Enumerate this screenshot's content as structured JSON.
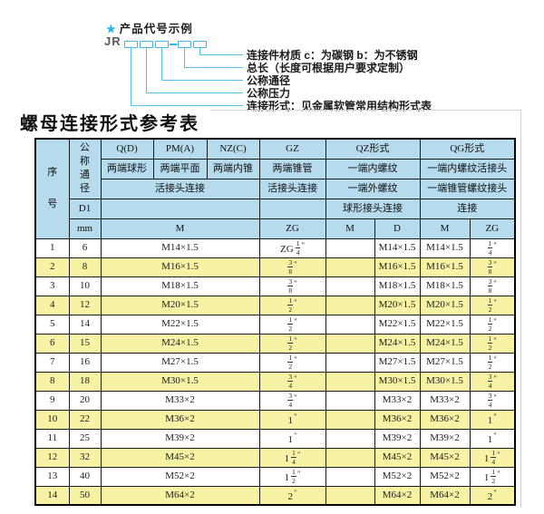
{
  "colors": {
    "accent_cyan": "#3cb6e3",
    "header_blue": "#b5dbed",
    "row_yellow": "#f8f2a4",
    "grid_black": "#1a1a1a"
  },
  "diagram": {
    "star": "★",
    "title": "产品代号示例",
    "prefix": "JR",
    "labels": [
      "连接件材质  c：为碳钢  b：为不锈钢",
      "总长（长度可根据用户要求定制）",
      "公称通径",
      "公称压力",
      "连接形式：见金属软管常用结构形式表"
    ]
  },
  "heading": "螺母连接形式参考表",
  "table": {
    "header": {
      "xuhao_1": "序",
      "xuhao_2": "号",
      "nominal_diameter": "公称通径",
      "col_q": "Q(D)",
      "col_pm": "PM(A)",
      "col_nz": "NZ(C)",
      "col_gz": "GZ",
      "col_qz": "QZ形式",
      "col_qg": "QG形式",
      "q_desc": "两端球形",
      "pm_desc": "两端平面",
      "nz_desc": "两端内锥",
      "gz_desc": "两端锥管",
      "qz_desc1": "一端内螺纹",
      "qg_desc1": "一端内螺纹活接头",
      "union_conn": "活接头连接",
      "gz_conn": "活接头连接",
      "qz_desc2": "一端外螺纹",
      "qg_desc2": "一端锥管螺纹接头",
      "d1": "D1",
      "qz_conn": "球形接头连接",
      "qg_conn": "连接",
      "mm": "mm",
      "m_main": "M",
      "zg_gz": "ZG",
      "m_qz": "M",
      "d_qz": "D",
      "m_qg": "M",
      "zg_qg": "ZG"
    },
    "rows": [
      {
        "no": "1",
        "dn": "6",
        "m": "M14×1.5",
        "gz": "ZG 1/4\"",
        "qz_m": "",
        "qz_d": "M14×1.5",
        "qg_m": "M14×1.5",
        "qg_zg": "1/4\""
      },
      {
        "no": "2",
        "dn": "8",
        "m": "M16×1.5",
        "gz": "3/8\"",
        "qz_m": "",
        "qz_d": "M16×1.5",
        "qg_m": "M16×1.5",
        "qg_zg": "3/8\""
      },
      {
        "no": "3",
        "dn": "10",
        "m": "M18×1.5",
        "gz": "3/8\"",
        "qz_m": "",
        "qz_d": "M18×1.5",
        "qg_m": "M18×1.5",
        "qg_zg": "3/8\""
      },
      {
        "no": "4",
        "dn": "12",
        "m": "M20×1.5",
        "gz": "1/2\"",
        "qz_m": "",
        "qz_d": "M20×1.5",
        "qg_m": "M20×1.5",
        "qg_zg": "1/2\""
      },
      {
        "no": "5",
        "dn": "14",
        "m": "M22×1.5",
        "gz": "1/2\"",
        "qz_m": "",
        "qz_d": "M22×1.5",
        "qg_m": "M22×1.5",
        "qg_zg": "1/2\""
      },
      {
        "no": "6",
        "dn": "15",
        "m": "M24×1.5",
        "gz": "1/2\"",
        "qz_m": "",
        "qz_d": "M24×1.5",
        "qg_m": "M24×1.5",
        "qg_zg": "1/2\""
      },
      {
        "no": "7",
        "dn": "16",
        "m": "M27×1.5",
        "gz": "1/2\"",
        "qz_m": "",
        "qz_d": "M27×1.5",
        "qg_m": "M27×1.5",
        "qg_zg": "1/2\""
      },
      {
        "no": "8",
        "dn": "18",
        "m": "M30×1.5",
        "gz": "3/4\"",
        "qz_m": "",
        "qz_d": "M30×1.5",
        "qg_m": "M30×1.5",
        "qg_zg": "3/4\""
      },
      {
        "no": "9",
        "dn": "20",
        "m": "M33×2",
        "gz": "3/4\"",
        "qz_m": "",
        "qz_d": "M33×2",
        "qg_m": "M33×2",
        "qg_zg": "3/4\""
      },
      {
        "no": "10",
        "dn": "22",
        "m": "M36×2",
        "gz": "1\"",
        "qz_m": "",
        "qz_d": "M36×2",
        "qg_m": "M36×2",
        "qg_zg": "1\""
      },
      {
        "no": "11",
        "dn": "25",
        "m": "M39×2",
        "gz": "1\"",
        "qz_m": "",
        "qz_d": "M39×2",
        "qg_m": "M39×2",
        "qg_zg": "1\""
      },
      {
        "no": "12",
        "dn": "32",
        "m": "M45×2",
        "gz": "1 1/4\"",
        "qz_m": "",
        "qz_d": "M45×2",
        "qg_m": "M45×2",
        "qg_zg": "1 1/4\""
      },
      {
        "no": "13",
        "dn": "40",
        "m": "M52×2",
        "gz": "1 1/2\"",
        "qz_m": "",
        "qz_d": "M52×2",
        "qg_m": "M52×2",
        "qg_zg": "1 1/2\""
      },
      {
        "no": "14",
        "dn": "50",
        "m": "M64×2",
        "gz": "2\"",
        "qz_m": "",
        "qz_d": "M64×2",
        "qg_m": "M64×2",
        "qg_zg": "2\""
      }
    ]
  }
}
